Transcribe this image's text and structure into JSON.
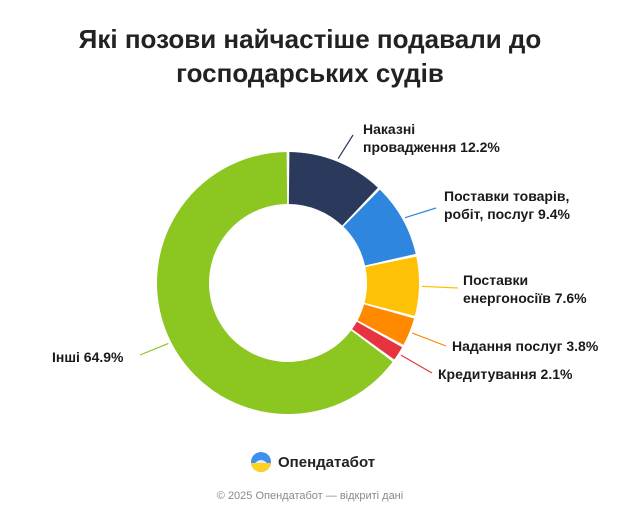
{
  "header": {
    "title_line1": "Які позови найчастіше подавали до",
    "title_line2": "господарських судів"
  },
  "chart_data": {
    "type": "pie",
    "variant": "donut",
    "title": "Які позови найчастіше подавали до господарських судів",
    "unit": "%",
    "slices": [
      {
        "label_line1": "Наказні",
        "label_line2": "провадження 12.2%",
        "name": "Наказні провадження",
        "value": 12.2,
        "color": "#2b3a5c"
      },
      {
        "label_line1": "Поставки товарів,",
        "label_line2": "робіт, послуг 9.4%",
        "name": "Поставки товарів, робіт, послуг",
        "value": 9.4,
        "color": "#2f86de"
      },
      {
        "label_line1": "Поставки",
        "label_line2": "енергоносіїв 7.6%",
        "name": "Поставки енергоносіїв",
        "value": 7.6,
        "color": "#ffc107"
      },
      {
        "label_line1": "Надання послуг 3.8%",
        "label_line2": "",
        "name": "Надання послуг",
        "value": 3.8,
        "color": "#ff8a00"
      },
      {
        "label_line1": "Кредитування 2.1%",
        "label_line2": "",
        "name": "Кредитування",
        "value": 2.1,
        "color": "#e5343f"
      },
      {
        "label_line1": "Інші 64.9%",
        "label_line2": "",
        "name": "Інші",
        "value": 64.9,
        "color": "#8cc620"
      }
    ]
  },
  "brand": {
    "name": "Опендатабот",
    "icon": "opendatabot-logo-icon"
  },
  "footer": {
    "text": "© 2025 Опендатабот — відкриті дані"
  }
}
